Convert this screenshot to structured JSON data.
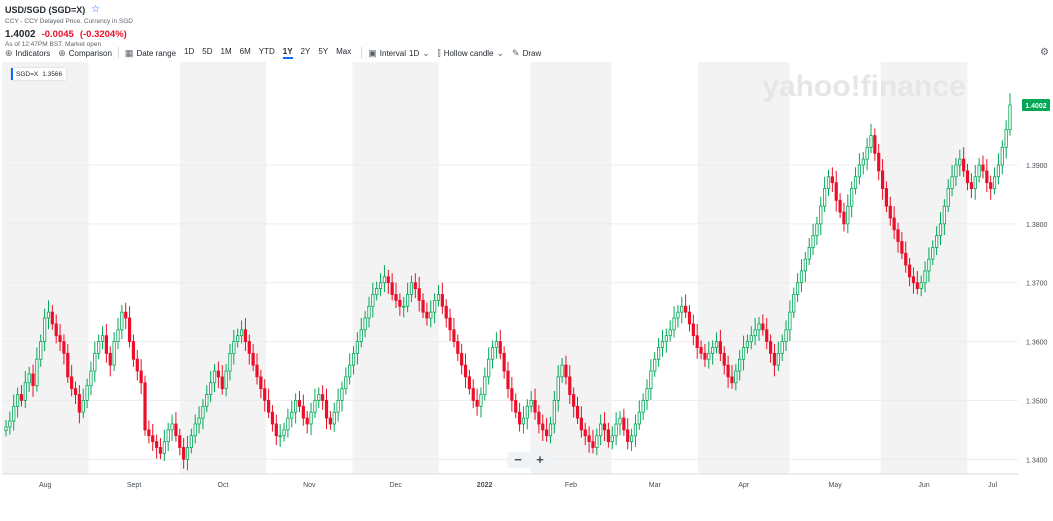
{
  "header": {
    "title": "USD/SGD (SGD=X)",
    "subtitle": "CCY - CCY Delayed Price. Currency in SGD",
    "price": "1.4002",
    "change": "-0.0045",
    "change_pct": "(-0.3204%)",
    "as_of": "As of 12:47PM BST. Market open"
  },
  "toolbar": {
    "indicators": "Indicators",
    "comparison": "Comparison",
    "date_range": "Date range",
    "ranges": [
      "1D",
      "5D",
      "1M",
      "6M",
      "YTD",
      "1Y",
      "2Y",
      "5Y",
      "Max"
    ],
    "selected_range": "1Y",
    "interval_label": "Interval",
    "interval_value": "1D",
    "chart_type": "Hollow candle",
    "draw": "Draw"
  },
  "legend": {
    "symbol": "SGD=X",
    "value": "1.3566"
  },
  "watermark": "yahoo!finance",
  "zoom": {
    "minus": "−",
    "plus": "+"
  },
  "colors": {
    "up": "#00a755",
    "down": "#eb0f29",
    "accent": "#0f69ff",
    "band": "#f3f3f3"
  },
  "chart_data": {
    "type": "hollow-candle",
    "title": "USD/SGD (SGD=X)",
    "ylim": [
      1.3375,
      1.4075
    ],
    "y_ticks": [
      "1.3400",
      "1.3500",
      "1.3600",
      "1.3700",
      "1.3800",
      "1.3900"
    ],
    "x_labels": [
      "Aug",
      "Sept",
      "Oct",
      "Nov",
      "Dec",
      "2022",
      "Feb",
      "Mar",
      "Apr",
      "May",
      "Jun",
      "Jul"
    ],
    "last_price_label": "1.4002",
    "grid": true,
    "closes": [
      1.3455,
      1.3465,
      1.349,
      1.351,
      1.35,
      1.353,
      1.3545,
      1.3525,
      1.357,
      1.36,
      1.364,
      1.365,
      1.363,
      1.361,
      1.36,
      1.358,
      1.354,
      1.352,
      1.351,
      1.348,
      1.35,
      1.3525,
      1.355,
      1.358,
      1.36,
      1.361,
      1.358,
      1.356,
      1.36,
      1.362,
      1.365,
      1.364,
      1.36,
      1.357,
      1.355,
      1.353,
      1.345,
      1.344,
      1.343,
      1.342,
      1.341,
      1.343,
      1.345,
      1.346,
      1.344,
      1.342,
      1.34,
      1.342,
      1.344,
      1.346,
      1.347,
      1.349,
      1.351,
      1.353,
      1.355,
      1.354,
      1.352,
      1.355,
      1.358,
      1.36,
      1.361,
      1.362,
      1.36,
      1.358,
      1.356,
      1.354,
      1.352,
      1.35,
      1.348,
      1.346,
      1.344,
      1.344,
      1.345,
      1.347,
      1.348,
      1.35,
      1.349,
      1.347,
      1.346,
      1.348,
      1.35,
      1.351,
      1.35,
      1.347,
      1.346,
      1.348,
      1.35,
      1.352,
      1.354,
      1.356,
      1.358,
      1.36,
      1.362,
      1.364,
      1.366,
      1.368,
      1.369,
      1.37,
      1.371,
      1.37,
      1.368,
      1.367,
      1.366,
      1.366,
      1.368,
      1.37,
      1.369,
      1.367,
      1.365,
      1.364,
      1.365,
      1.367,
      1.368,
      1.366,
      1.364,
      1.362,
      1.36,
      1.358,
      1.356,
      1.354,
      1.352,
      1.35,
      1.349,
      1.351,
      1.354,
      1.357,
      1.359,
      1.36,
      1.358,
      1.355,
      1.352,
      1.35,
      1.348,
      1.346,
      1.347,
      1.349,
      1.35,
      1.348,
      1.346,
      1.345,
      1.344,
      1.346,
      1.35,
      1.354,
      1.356,
      1.354,
      1.351,
      1.349,
      1.347,
      1.345,
      1.344,
      1.343,
      1.342,
      1.344,
      1.346,
      1.345,
      1.343,
      1.344,
      1.346,
      1.347,
      1.345,
      1.343,
      1.344,
      1.346,
      1.348,
      1.35,
      1.352,
      1.355,
      1.357,
      1.359,
      1.36,
      1.361,
      1.362,
      1.364,
      1.365,
      1.366,
      1.365,
      1.363,
      1.361,
      1.359,
      1.358,
      1.357,
      1.358,
      1.359,
      1.36,
      1.358,
      1.356,
      1.354,
      1.353,
      1.355,
      1.357,
      1.359,
      1.36,
      1.361,
      1.362,
      1.363,
      1.362,
      1.36,
      1.358,
      1.356,
      1.358,
      1.36,
      1.362,
      1.365,
      1.368,
      1.37,
      1.372,
      1.374,
      1.376,
      1.378,
      1.38,
      1.383,
      1.386,
      1.388,
      1.387,
      1.384,
      1.382,
      1.38,
      1.383,
      1.386,
      1.388,
      1.39,
      1.391,
      1.393,
      1.395,
      1.392,
      1.389,
      1.386,
      1.383,
      1.381,
      1.379,
      1.377,
      1.375,
      1.373,
      1.371,
      1.37,
      1.369,
      1.37,
      1.372,
      1.374,
      1.376,
      1.378,
      1.38,
      1.383,
      1.386,
      1.388,
      1.39,
      1.391,
      1.389,
      1.387,
      1.386,
      1.388,
      1.39,
      1.389,
      1.387,
      1.386,
      1.388,
      1.39,
      1.393,
      1.396,
      1.4002
    ]
  }
}
